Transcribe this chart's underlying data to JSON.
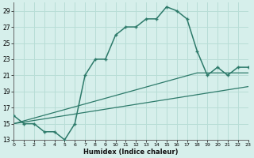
{
  "xlabel": "Humidex (Indice chaleur)",
  "x": [
    0,
    1,
    2,
    3,
    4,
    5,
    6,
    7,
    8,
    9,
    10,
    11,
    12,
    13,
    14,
    15,
    16,
    17,
    18,
    19,
    20,
    21,
    22,
    23
  ],
  "y_main": [
    16,
    15,
    15,
    14,
    14,
    13,
    15,
    21,
    23,
    23,
    26,
    27,
    27,
    28,
    28,
    29.5,
    29,
    28,
    24,
    21,
    22,
    21,
    22,
    22
  ],
  "y_line1": [
    15.0,
    15.35,
    15.7,
    16.05,
    16.4,
    16.75,
    17.1,
    17.45,
    17.8,
    18.15,
    18.5,
    18.85,
    19.2,
    19.55,
    19.9,
    20.25,
    20.6,
    20.95,
    21.3,
    21.3,
    21.3,
    21.3,
    21.3,
    21.3
  ],
  "y_line2": [
    15.0,
    15.2,
    15.4,
    15.6,
    15.8,
    16.0,
    16.2,
    16.4,
    16.6,
    16.8,
    17.0,
    17.2,
    17.4,
    17.6,
    17.8,
    18.0,
    18.2,
    18.4,
    18.6,
    18.8,
    19.0,
    19.2,
    19.4,
    19.6
  ],
  "line_color": "#2d7a6a",
  "bg_color": "#d6efeb",
  "grid_color": "#b8ddd6",
  "ylim": [
    13,
    30
  ],
  "xlim": [
    0,
    23
  ],
  "yticks": [
    13,
    15,
    17,
    19,
    21,
    23,
    25,
    27,
    29
  ],
  "xticks": [
    0,
    1,
    2,
    3,
    4,
    5,
    6,
    7,
    8,
    9,
    10,
    11,
    12,
    13,
    14,
    15,
    16,
    17,
    18,
    19,
    20,
    21,
    22,
    23
  ]
}
